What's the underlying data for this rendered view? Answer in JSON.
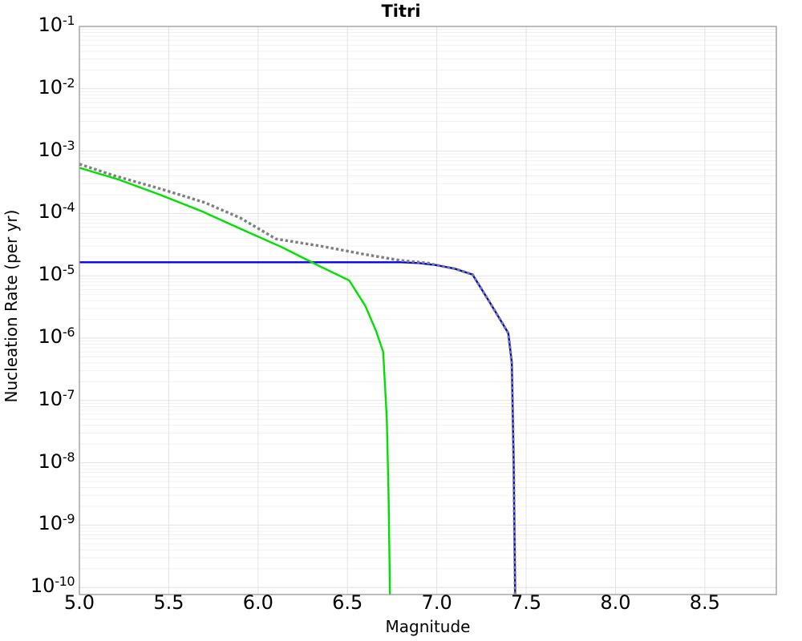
{
  "chart_data": {
    "type": "line",
    "title": "Titri",
    "xlabel": "Magnitude",
    "ylabel": "Nucleation Rate (per yr)",
    "legend": "none",
    "grid": "on",
    "x_axis": {
      "min": 5.0,
      "max": 8.9,
      "tick_labels": [
        "5.0",
        "5.5",
        "6.0",
        "6.5",
        "7.0",
        "7.5",
        "8.0",
        "8.5"
      ],
      "tick_values": [
        5.0,
        5.5,
        6.0,
        6.5,
        7.0,
        7.5,
        8.0,
        8.5
      ]
    },
    "y_axis": {
      "scale": "log",
      "top_exp": -1,
      "bottom_exp": -10,
      "tick_base": "10",
      "tick_exponents": [
        "-1",
        "-2",
        "-3",
        "-4",
        "-5",
        "-6",
        "-7",
        "-8",
        "-9",
        "-10"
      ]
    },
    "colors": {
      "blue_line": "#0000f0",
      "green_line": "#00e100",
      "dotted_line": "#7f7f7f",
      "grid_major": "#e2e2e2",
      "grid_minor": "#f0f0f0",
      "spine": "#999999",
      "background": "#ffffff"
    },
    "series": [
      {
        "name": "blue-solid-line",
        "color": "#0000f0",
        "style": "solid",
        "width": 2.4,
        "points": [
          [
            5.0,
            1.65e-05
          ],
          [
            6.8,
            1.65e-05
          ],
          [
            6.9,
            1.6e-05
          ],
          [
            7.0,
            1.48e-05
          ],
          [
            7.1,
            1.3e-05
          ],
          [
            7.2,
            1.05e-05
          ],
          [
            7.3,
            3.6e-06
          ],
          [
            7.4,
            1.2e-06
          ],
          [
            7.42,
            4e-07
          ],
          [
            7.43,
            1e-08
          ],
          [
            7.44,
            3e-11
          ]
        ]
      },
      {
        "name": "green-solid-line",
        "color": "#00e100",
        "style": "solid",
        "width": 2.4,
        "points": [
          [
            5.0,
            0.00054
          ],
          [
            5.22,
            0.00035
          ],
          [
            5.45,
            0.0002
          ],
          [
            5.68,
            0.00011
          ],
          [
            5.9,
            5.7e-05
          ],
          [
            6.13,
            2.9e-05
          ],
          [
            6.35,
            1.4e-05
          ],
          [
            6.51,
            8.4e-06
          ],
          [
            6.6,
            3.3e-06
          ],
          [
            6.66,
            1.3e-06
          ],
          [
            6.7,
            6e-07
          ],
          [
            6.72,
            5e-08
          ],
          [
            6.73,
            3e-09
          ],
          [
            6.74,
            3e-11
          ]
        ]
      },
      {
        "name": "gray-dotted-line",
        "color": "#7f7f7f",
        "style": "dotted",
        "width": 3.4,
        "points": [
          [
            5.0,
            0.00062
          ],
          [
            5.2,
            0.0004
          ],
          [
            5.45,
            0.00025
          ],
          [
            5.7,
            0.00015
          ],
          [
            5.9,
            8.5e-05
          ],
          [
            6.1,
            3.9e-05
          ],
          [
            6.35,
            3e-05
          ],
          [
            6.6,
            2.2e-05
          ],
          [
            6.8,
            1.76e-05
          ],
          [
            6.95,
            1.6e-05
          ],
          [
            7.0,
            1.48e-05
          ],
          [
            7.1,
            1.3e-05
          ],
          [
            7.2,
            1.05e-05
          ],
          [
            7.3,
            3.6e-06
          ],
          [
            7.4,
            1.2e-06
          ],
          [
            7.42,
            4e-07
          ],
          [
            7.43,
            1e-08
          ],
          [
            7.44,
            3e-11
          ]
        ]
      }
    ]
  }
}
